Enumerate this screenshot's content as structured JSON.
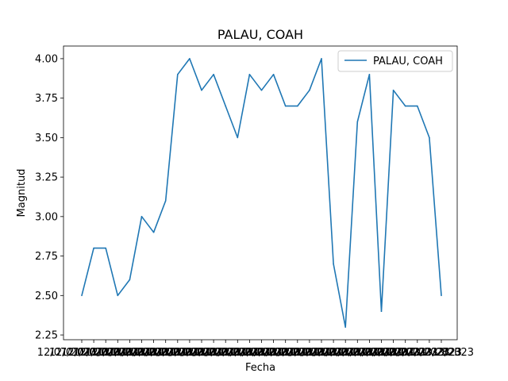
{
  "chart_data": {
    "type": "line",
    "title": "PALAU, COAH",
    "xlabel": "Fecha",
    "ylabel": "Magnitud",
    "ylim": [
      2.22,
      4.08
    ],
    "yticks": [
      "2.25",
      "2.50",
      "2.75",
      "3.00",
      "3.25",
      "3.50",
      "3.75",
      "4.00"
    ],
    "ytick_values": [
      2.25,
      2.5,
      2.75,
      3.0,
      3.25,
      3.5,
      3.75,
      4.0
    ],
    "legend": "upper right",
    "grid": false,
    "x_overlapping_tick_text": "12/07/2023/2023",
    "x_last_tick_text": "323",
    "series": [
      {
        "name": "PALAU, COAH",
        "color": "#1f77b4",
        "values": [
          2.5,
          2.8,
          2.8,
          2.5,
          2.6,
          3.0,
          2.9,
          3.1,
          3.9,
          4.0,
          3.8,
          3.9,
          3.7,
          3.5,
          3.9,
          3.8,
          3.9,
          3.7,
          3.7,
          3.8,
          4.0,
          2.7,
          2.3,
          3.6,
          3.9,
          2.4,
          3.8,
          3.7,
          3.7,
          3.5,
          2.5
        ]
      }
    ]
  }
}
